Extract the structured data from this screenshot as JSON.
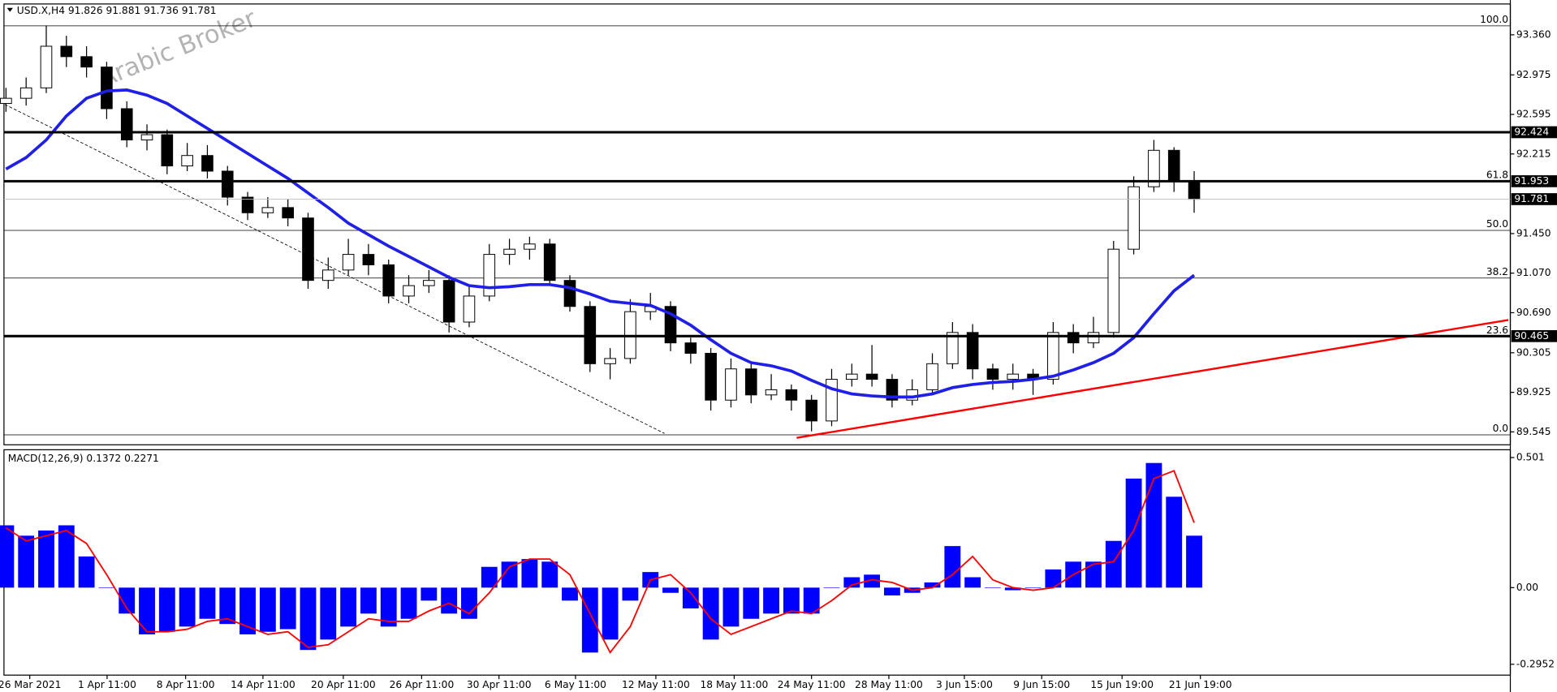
{
  "chart_data": {
    "type": "candlestick",
    "title": "USD.X,H4  91.826 91.881 91.736 91.781",
    "watermark": "Arabic Broker",
    "xlim": [
      -0.1,
      74.7
    ],
    "ylim": [
      89.421,
      93.656
    ],
    "yticks": [
      {
        "value": 93.36,
        "label": "93.360"
      },
      {
        "value": 92.975,
        "label": "92.975"
      },
      {
        "value": 92.595,
        "label": "92.595"
      },
      {
        "value": 92.215,
        "label": "92.215"
      },
      {
        "value": 91.45,
        "label": "91.450"
      },
      {
        "value": 91.07,
        "label": "91.070"
      },
      {
        "value": 90.69,
        "label": "90.690"
      },
      {
        "value": 90.305,
        "label": "90.305"
      },
      {
        "value": 89.925,
        "label": "89.925"
      },
      {
        "value": 89.545,
        "label": "89.545"
      }
    ],
    "xticks": [
      {
        "value": 1.18,
        "label": "26 Mar 2021"
      },
      {
        "value": 5.02,
        "label": "1 Apr 11:00"
      },
      {
        "value": 8.92,
        "label": "8 Apr 11:00"
      },
      {
        "value": 12.76,
        "label": "14 Apr 11:00"
      },
      {
        "value": 16.75,
        "label": "20 Apr 11:00"
      },
      {
        "value": 20.64,
        "label": "26 Apr 11:00"
      },
      {
        "value": 24.48,
        "label": "30 Apr 11:00"
      },
      {
        "value": 28.28,
        "label": "6 May 11:00"
      },
      {
        "value": 32.27,
        "label": "12 May 11:00"
      },
      {
        "value": 36.16,
        "label": "18 May 11:00"
      },
      {
        "value": 40.0,
        "label": "24 May 11:00"
      },
      {
        "value": 43.84,
        "label": "28 May 11:00"
      },
      {
        "value": 47.59,
        "label": "3 Jun 15:00"
      },
      {
        "value": 51.43,
        "label": "9 Jun 15:00"
      },
      {
        "value": 55.42,
        "label": "15 Jun 19:00"
      },
      {
        "value": 59.31,
        "label": "21 Jun 19:00"
      }
    ],
    "candles": {
      "up_color": "#ffffff",
      "down_color": "#000000",
      "open": [
        92.7,
        92.75,
        92.85,
        93.25,
        93.15,
        93.05,
        92.65,
        92.35,
        92.4,
        92.1,
        92.2,
        92.05,
        91.8,
        91.65,
        91.7,
        91.6,
        91.0,
        91.1,
        91.25,
        91.15,
        90.85,
        90.95,
        91.0,
        90.6,
        90.85,
        91.25,
        91.3,
        91.35,
        91.0,
        90.75,
        90.2,
        90.25,
        90.7,
        90.75,
        90.4,
        90.3,
        89.85,
        90.15,
        89.9,
        89.95,
        89.85,
        89.65,
        90.05,
        90.1,
        90.05,
        89.85,
        89.95,
        90.2,
        90.5,
        90.15,
        90.05,
        90.1,
        90.05,
        90.5,
        90.4,
        90.5,
        91.3,
        91.9,
        92.25,
        91.95
      ],
      "high": [
        92.85,
        92.95,
        93.45,
        93.35,
        93.25,
        93.1,
        92.72,
        92.5,
        92.45,
        92.32,
        92.3,
        92.1,
        91.85,
        91.8,
        91.78,
        91.65,
        91.22,
        91.4,
        91.35,
        91.2,
        91.05,
        91.1,
        91.05,
        90.95,
        91.35,
        91.4,
        91.42,
        91.4,
        91.05,
        90.8,
        90.35,
        90.82,
        90.88,
        90.8,
        90.45,
        90.35,
        90.25,
        90.2,
        90.1,
        90.0,
        89.9,
        90.15,
        90.2,
        90.38,
        90.1,
        90.05,
        90.3,
        90.6,
        90.58,
        90.2,
        90.2,
        90.15,
        90.6,
        90.58,
        90.65,
        91.38,
        92.0,
        92.35,
        92.28,
        92.05
      ],
      "low": [
        92.62,
        92.68,
        92.8,
        93.05,
        92.95,
        92.55,
        92.28,
        92.25,
        92.02,
        92.05,
        91.98,
        91.72,
        91.58,
        91.6,
        91.52,
        90.92,
        90.92,
        91.05,
        91.05,
        90.78,
        90.78,
        90.88,
        90.5,
        90.55,
        90.8,
        91.15,
        91.2,
        90.95,
        90.7,
        90.12,
        90.05,
        90.2,
        90.62,
        90.32,
        90.2,
        89.75,
        89.78,
        89.82,
        89.85,
        89.75,
        89.55,
        89.6,
        89.98,
        89.98,
        89.78,
        89.8,
        89.9,
        90.15,
        90.05,
        89.95,
        89.95,
        89.9,
        90.0,
        90.3,
        90.35,
        90.45,
        91.25,
        91.85,
        91.85,
        91.65
      ],
      "close": [
        92.75,
        92.85,
        93.25,
        93.15,
        93.05,
        92.65,
        92.35,
        92.4,
        92.1,
        92.2,
        92.05,
        91.8,
        91.65,
        91.7,
        91.6,
        91.0,
        91.1,
        91.25,
        91.15,
        90.85,
        90.95,
        91.0,
        90.6,
        90.85,
        91.25,
        91.3,
        91.35,
        91.0,
        90.75,
        90.2,
        90.25,
        90.7,
        90.75,
        90.4,
        90.3,
        89.85,
        90.15,
        89.9,
        89.95,
        89.85,
        89.65,
        90.05,
        90.1,
        90.05,
        89.85,
        89.95,
        90.2,
        90.5,
        90.15,
        90.05,
        90.1,
        90.05,
        90.5,
        90.4,
        90.5,
        91.3,
        91.9,
        92.25,
        91.95,
        91.78
      ]
    },
    "moving_average": {
      "color": "#1f1fe6",
      "values": [
        92.07,
        92.18,
        92.35,
        92.58,
        92.75,
        92.82,
        92.83,
        92.78,
        92.7,
        92.58,
        92.46,
        92.34,
        92.22,
        92.1,
        91.98,
        91.84,
        91.7,
        91.55,
        91.44,
        91.33,
        91.23,
        91.13,
        91.03,
        90.95,
        90.93,
        90.94,
        90.96,
        90.96,
        90.93,
        90.87,
        90.8,
        90.78,
        90.76,
        90.68,
        90.57,
        90.43,
        90.3,
        90.21,
        90.18,
        90.13,
        90.04,
        89.96,
        89.91,
        89.89,
        89.88,
        89.88,
        89.91,
        89.97,
        90.0,
        90.02,
        90.03,
        90.05,
        90.08,
        90.14,
        90.21,
        90.3,
        90.45,
        90.68,
        90.9,
        91.05
      ]
    },
    "hlines": {
      "color": "#000000",
      "values": [
        92.424,
        91.953,
        90.465
      ],
      "value_labels": [
        "92.424",
        "91.953",
        "90.465"
      ]
    },
    "current_price": {
      "value": 91.781,
      "label": "91.781"
    },
    "fibo": {
      "labels": [
        "100.0",
        "61.8",
        "50.0",
        "38.2",
        "23.6",
        "0.0"
      ],
      "prices": [
        93.446,
        91.953,
        91.481,
        91.023,
        90.461,
        89.517
      ]
    },
    "trendlines": [
      {
        "color": "#ff0000",
        "x": [
          39.26,
          74.6
        ],
        "y": [
          89.488,
          90.62
        ]
      },
      {
        "color": "#000000",
        "dashed": true,
        "x": [
          -0.05,
          32.7
        ],
        "y": [
          92.69,
          89.53
        ]
      }
    ],
    "macd": {
      "label": "MACD(12,26,9) 0.1372 0.2271",
      "ylim": [
        -0.337,
        0.531
      ],
      "yticks": [
        {
          "value": 0.501,
          "label": "0.501"
        },
        {
          "value": 0,
          "label": "0.00"
        },
        -0.2952
      ],
      "histogram": {
        "color": "#0000ff",
        "values": [
          0.24,
          0.2,
          0.22,
          0.24,
          0.12,
          0.0,
          -0.1,
          -0.18,
          -0.17,
          -0.15,
          -0.12,
          -0.14,
          -0.18,
          -0.17,
          -0.16,
          -0.24,
          -0.2,
          -0.15,
          -0.1,
          -0.15,
          -0.12,
          -0.05,
          -0.1,
          -0.12,
          0.08,
          0.1,
          0.11,
          0.1,
          -0.05,
          -0.25,
          -0.2,
          -0.05,
          0.06,
          -0.02,
          -0.08,
          -0.2,
          -0.15,
          -0.12,
          -0.1,
          -0.1,
          -0.1,
          0.0,
          0.04,
          0.05,
          -0.03,
          -0.02,
          0.02,
          0.16,
          0.04,
          0.0,
          -0.01,
          0.0,
          0.07,
          0.1,
          0.1,
          0.18,
          0.42,
          0.48,
          0.35,
          0.2
        ]
      },
      "signal": {
        "color": "#ff0000",
        "values": [
          0.23,
          0.18,
          0.2,
          0.22,
          0.17,
          0.05,
          -0.08,
          -0.17,
          -0.17,
          -0.16,
          -0.13,
          -0.12,
          -0.15,
          -0.18,
          -0.17,
          -0.23,
          -0.22,
          -0.17,
          -0.12,
          -0.13,
          -0.13,
          -0.09,
          -0.06,
          -0.1,
          -0.02,
          0.08,
          0.11,
          0.11,
          0.05,
          -0.1,
          -0.25,
          -0.15,
          0.03,
          0.05,
          -0.02,
          -0.12,
          -0.18,
          -0.15,
          -0.12,
          -0.09,
          -0.1,
          -0.05,
          0.01,
          0.03,
          0.02,
          -0.01,
          0.0,
          0.05,
          0.12,
          0.03,
          0.0,
          -0.01,
          0.0,
          0.05,
          0.09,
          0.1,
          0.22,
          0.42,
          0.45,
          0.25
        ]
      }
    }
  }
}
